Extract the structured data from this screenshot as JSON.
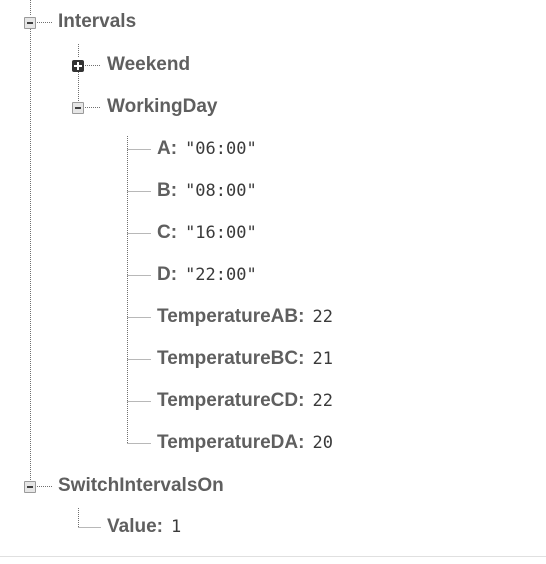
{
  "tree": {
    "intervals": {
      "key": "Intervals",
      "expanded": true,
      "weekend": {
        "key": "Weekend",
        "expanded": false
      },
      "working_day": {
        "key": "WorkingDay",
        "expanded": true,
        "children": [
          {
            "key": "A:",
            "value": "\"06:00\""
          },
          {
            "key": "B:",
            "value": "\"08:00\""
          },
          {
            "key": "C:",
            "value": "\"16:00\""
          },
          {
            "key": "D:",
            "value": "\"22:00\""
          },
          {
            "key": "TemperatureAB:",
            "value": "22"
          },
          {
            "key": "TemperatureBC:",
            "value": "21"
          },
          {
            "key": "TemperatureCD:",
            "value": "22"
          },
          {
            "key": "TemperatureDA:",
            "value": "20"
          }
        ]
      }
    },
    "switch_intervals_on": {
      "key": "SwitchIntervalsOn",
      "expanded": true,
      "children": [
        {
          "key": "Value:",
          "value": "1"
        }
      ]
    }
  },
  "icons": {
    "collapse": "minus-square-icon",
    "expand": "plus-square-icon"
  }
}
